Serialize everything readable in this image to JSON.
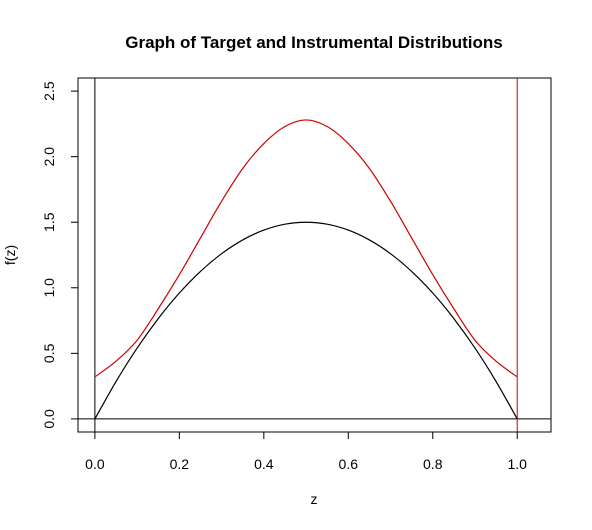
{
  "chart_data": {
    "type": "line",
    "title": "Graph of Target and Instrumental Distributions",
    "xlabel": "z",
    "ylabel": "f(z)",
    "xlim": [
      -0.04,
      1.08
    ],
    "ylim": [
      -0.1,
      2.6
    ],
    "x_ticks": [
      "0.0",
      "0.2",
      "0.4",
      "0.6",
      "0.8",
      "1.0"
    ],
    "y_ticks": [
      "0.0",
      "0.5",
      "1.0",
      "1.5",
      "2.0",
      "2.5"
    ],
    "grid": false,
    "reference_lines": {
      "horizontal": [
        {
          "y": 0,
          "color": "#000000"
        }
      ],
      "vertical": [
        {
          "x": 0,
          "color": "#000000"
        },
        {
          "x": 1,
          "color": "#cc0000"
        }
      ]
    },
    "series": [
      {
        "color": "#000000",
        "x": [
          0.0,
          0.05,
          0.1,
          0.15,
          0.2,
          0.25,
          0.3,
          0.35,
          0.4,
          0.45,
          0.5,
          0.55,
          0.6,
          0.65,
          0.7,
          0.75,
          0.8,
          0.85,
          0.9,
          0.95,
          1.0
        ],
        "y": [
          0.0,
          0.285,
          0.54,
          0.765,
          0.96,
          1.125,
          1.26,
          1.365,
          1.44,
          1.485,
          1.5,
          1.485,
          1.44,
          1.365,
          1.26,
          1.125,
          0.96,
          0.765,
          0.54,
          0.285,
          0.0
        ]
      },
      {
        "color": "#cc0000",
        "x": [
          0.0,
          0.05,
          0.1,
          0.15,
          0.2,
          0.25,
          0.3,
          0.35,
          0.4,
          0.45,
          0.5,
          0.55,
          0.6,
          0.65,
          0.7,
          0.75,
          0.8,
          0.85,
          0.9,
          0.95,
          1.0
        ],
        "y": [
          0.32,
          0.44,
          0.6,
          0.84,
          1.1,
          1.38,
          1.66,
          1.91,
          2.1,
          2.23,
          2.28,
          2.23,
          2.1,
          1.91,
          1.66,
          1.38,
          1.1,
          0.84,
          0.6,
          0.44,
          0.32
        ]
      }
    ]
  }
}
